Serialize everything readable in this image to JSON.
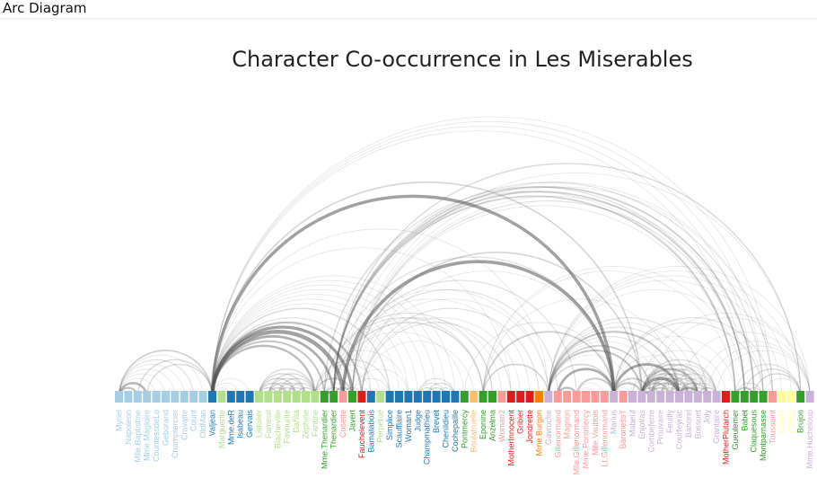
{
  "app": {
    "title": "Arc Diagram"
  },
  "chart_data": {
    "type": "arc",
    "title": "Character Co-occurrence in Les Miserables",
    "group_colors": {
      "1": "#a6cee3",
      "2": "#1f78b4",
      "3": "#b2df8a",
      "4": "#33a02c",
      "5": "#fb9a99",
      "6": "#e31a1c",
      "7": "#fdbf6f",
      "8": "#ff7f00",
      "9": "#cab2d6",
      "10": "#6a3d9a",
      "11": "#ffff99"
    },
    "nodes": [
      {
        "name": "Myriel",
        "group": 1
      },
      {
        "name": "Napoleon",
        "group": 1
      },
      {
        "name": "Mlle.Baptistine",
        "group": 1
      },
      {
        "name": "Mme.Magloire",
        "group": 1
      },
      {
        "name": "CountessdeLo",
        "group": 1
      },
      {
        "name": "Geborand",
        "group": 1
      },
      {
        "name": "Champtercier",
        "group": 1
      },
      {
        "name": "Cravatte",
        "group": 1
      },
      {
        "name": "Count",
        "group": 1
      },
      {
        "name": "OldMan",
        "group": 1
      },
      {
        "name": "Valjean",
        "group": 2
      },
      {
        "name": "Marguerite",
        "group": 3
      },
      {
        "name": "Mme.deR",
        "group": 2
      },
      {
        "name": "Isabeau",
        "group": 2
      },
      {
        "name": "Gervais",
        "group": 2
      },
      {
        "name": "Listolier",
        "group": 3
      },
      {
        "name": "Fameuil",
        "group": 3
      },
      {
        "name": "Blacheville",
        "group": 3
      },
      {
        "name": "Favourite",
        "group": 3
      },
      {
        "name": "Dahlia",
        "group": 3
      },
      {
        "name": "Zephine",
        "group": 3
      },
      {
        "name": "Fantine",
        "group": 3
      },
      {
        "name": "Mme.Thenardier",
        "group": 4
      },
      {
        "name": "Thenardier",
        "group": 4
      },
      {
        "name": "Cosette",
        "group": 5
      },
      {
        "name": "Javert",
        "group": 4
      },
      {
        "name": "Fauchelevent",
        "group": 6
      },
      {
        "name": "Bamatabois",
        "group": 2
      },
      {
        "name": "Perpetue",
        "group": 3
      },
      {
        "name": "Simplice",
        "group": 2
      },
      {
        "name": "Scaufflaire",
        "group": 2
      },
      {
        "name": "Woman1",
        "group": 2
      },
      {
        "name": "Judge",
        "group": 2
      },
      {
        "name": "Champmathieu",
        "group": 2
      },
      {
        "name": "Brevet",
        "group": 2
      },
      {
        "name": "Chenildieu",
        "group": 2
      },
      {
        "name": "Cochepaille",
        "group": 2
      },
      {
        "name": "Pontmercy",
        "group": 4
      },
      {
        "name": "Boulatruelle",
        "group": 7
      },
      {
        "name": "Eponine",
        "group": 4
      },
      {
        "name": "Anzelma",
        "group": 4
      },
      {
        "name": "Woman2",
        "group": 5
      },
      {
        "name": "MotherInnocent",
        "group": 6
      },
      {
        "name": "Gribier",
        "group": 6
      },
      {
        "name": "Jondrette",
        "group": 6
      },
      {
        "name": "Mme.Burgon",
        "group": 8
      },
      {
        "name": "Gavroche",
        "group": 9
      },
      {
        "name": "Gillenormand",
        "group": 5
      },
      {
        "name": "Magnon",
        "group": 5
      },
      {
        "name": "Mlle.Gillenormand",
        "group": 5
      },
      {
        "name": "Mme.Pontmercy",
        "group": 5
      },
      {
        "name": "Mlle.Vaubois",
        "group": 5
      },
      {
        "name": "Lt.Gillenormand",
        "group": 5
      },
      {
        "name": "Marius",
        "group": 9
      },
      {
        "name": "BaronessT",
        "group": 5
      },
      {
        "name": "Mabeuf",
        "group": 9
      },
      {
        "name": "Enjolras",
        "group": 9
      },
      {
        "name": "Combeferre",
        "group": 9
      },
      {
        "name": "Prouvaire",
        "group": 9
      },
      {
        "name": "Feuilly",
        "group": 9
      },
      {
        "name": "Courfeyrac",
        "group": 9
      },
      {
        "name": "Bahorel",
        "group": 9
      },
      {
        "name": "Bossuet",
        "group": 9
      },
      {
        "name": "Joly",
        "group": 9
      },
      {
        "name": "Grantaire",
        "group": 9
      },
      {
        "name": "MotherPlutarch",
        "group": 6
      },
      {
        "name": "Gueulemer",
        "group": 4
      },
      {
        "name": "Babet",
        "group": 4
      },
      {
        "name": "Claquesous",
        "group": 4
      },
      {
        "name": "Montparnasse",
        "group": 4
      },
      {
        "name": "Toussaint",
        "group": 5
      },
      {
        "name": "Child1",
        "group": 11
      },
      {
        "name": "Child2",
        "group": 11
      },
      {
        "name": "Brujon",
        "group": 4
      },
      {
        "name": "Mme.Hucheloup",
        "group": 9
      }
    ],
    "links": [
      [
        1,
        0,
        1
      ],
      [
        2,
        0,
        8
      ],
      [
        3,
        0,
        10
      ],
      [
        3,
        2,
        6
      ],
      [
        4,
        0,
        1
      ],
      [
        5,
        0,
        1
      ],
      [
        6,
        0,
        1
      ],
      [
        7,
        0,
        1
      ],
      [
        8,
        0,
        2
      ],
      [
        9,
        0,
        1
      ],
      [
        11,
        10,
        1
      ],
      [
        12,
        10,
        1
      ],
      [
        13,
        10,
        1
      ],
      [
        14,
        10,
        1
      ],
      [
        10,
        0,
        5
      ],
      [
        10,
        2,
        3
      ],
      [
        10,
        3,
        3
      ],
      [
        16,
        15,
        4
      ],
      [
        17,
        15,
        4
      ],
      [
        17,
        16,
        4
      ],
      [
        18,
        15,
        4
      ],
      [
        18,
        16,
        4
      ],
      [
        18,
        17,
        4
      ],
      [
        19,
        15,
        4
      ],
      [
        19,
        16,
        4
      ],
      [
        19,
        17,
        4
      ],
      [
        19,
        18,
        4
      ],
      [
        20,
        15,
        3
      ],
      [
        20,
        16,
        3
      ],
      [
        20,
        17,
        3
      ],
      [
        20,
        18,
        3
      ],
      [
        20,
        19,
        4
      ],
      [
        21,
        15,
        3
      ],
      [
        21,
        16,
        3
      ],
      [
        21,
        17,
        3
      ],
      [
        21,
        18,
        3
      ],
      [
        21,
        19,
        4
      ],
      [
        21,
        20,
        4
      ],
      [
        21,
        10,
        9
      ],
      [
        22,
        21,
        2
      ],
      [
        22,
        10,
        7
      ],
      [
        23,
        22,
        13
      ],
      [
        23,
        21,
        1
      ],
      [
        23,
        10,
        12
      ],
      [
        24,
        22,
        4
      ],
      [
        24,
        10,
        31
      ],
      [
        24,
        23,
        1
      ],
      [
        25,
        10,
        17
      ],
      [
        25,
        21,
        5
      ],
      [
        25,
        22,
        1
      ],
      [
        25,
        23,
        6
      ],
      [
        25,
        24,
        1
      ],
      [
        26,
        10,
        8
      ],
      [
        26,
        24,
        2
      ],
      [
        27,
        10,
        2
      ],
      [
        27,
        25,
        1
      ],
      [
        27,
        21,
        1
      ],
      [
        28,
        21,
        1
      ],
      [
        29,
        10,
        3
      ],
      [
        29,
        21,
        2
      ],
      [
        29,
        25,
        1
      ],
      [
        29,
        28,
        2
      ],
      [
        30,
        10,
        1
      ],
      [
        31,
        21,
        1
      ],
      [
        31,
        10,
        1
      ],
      [
        31,
        25,
        1
      ],
      [
        32,
        10,
        1
      ],
      [
        33,
        10,
        1
      ],
      [
        33,
        32,
        2
      ],
      [
        34,
        10,
        1
      ],
      [
        34,
        32,
        2
      ],
      [
        34,
        33,
        3
      ],
      [
        35,
        10,
        1
      ],
      [
        35,
        32,
        2
      ],
      [
        35,
        33,
        3
      ],
      [
        35,
        34,
        2
      ],
      [
        36,
        10,
        1
      ],
      [
        36,
        32,
        2
      ],
      [
        36,
        33,
        3
      ],
      [
        36,
        34,
        2
      ],
      [
        36,
        35,
        2
      ],
      [
        37,
        23,
        1
      ],
      [
        38,
        26,
        1
      ],
      [
        39,
        22,
        2
      ],
      [
        39,
        23,
        3
      ],
      [
        40,
        22,
        2
      ],
      [
        40,
        23,
        1
      ],
      [
        40,
        39,
        1
      ],
      [
        41,
        24,
        1
      ],
      [
        42,
        10,
        1
      ],
      [
        42,
        26,
        2
      ],
      [
        43,
        26,
        1
      ],
      [
        44,
        23,
        1
      ],
      [
        45,
        26,
        2
      ],
      [
        46,
        23,
        1
      ],
      [
        46,
        39,
        4
      ],
      [
        46,
        25,
        1
      ],
      [
        46,
        10,
        1
      ],
      [
        47,
        24,
        2
      ],
      [
        48,
        47,
        1
      ],
      [
        49,
        47,
        9
      ],
      [
        49,
        24,
        2
      ],
      [
        50,
        49,
        1
      ],
      [
        51,
        49,
        1
      ],
      [
        52,
        49,
        1
      ],
      [
        53,
        10,
        19
      ],
      [
        53,
        24,
        21
      ],
      [
        53,
        23,
        2
      ],
      [
        53,
        47,
        12
      ],
      [
        53,
        49,
        6
      ],
      [
        53,
        46,
        4
      ],
      [
        53,
        39,
        5
      ],
      [
        53,
        26,
        1
      ],
      [
        53,
        37,
        1
      ],
      [
        54,
        53,
        1
      ],
      [
        55,
        46,
        1
      ],
      [
        55,
        53,
        1
      ],
      [
        56,
        46,
        7
      ],
      [
        56,
        53,
        7
      ],
      [
        56,
        25,
        4
      ],
      [
        56,
        10,
        4
      ],
      [
        57,
        56,
        15
      ],
      [
        57,
        46,
        5
      ],
      [
        57,
        53,
        5
      ],
      [
        58,
        56,
        4
      ],
      [
        58,
        57,
        2
      ],
      [
        58,
        46,
        1
      ],
      [
        59,
        46,
        2
      ],
      [
        59,
        56,
        6
      ],
      [
        59,
        57,
        5
      ],
      [
        59,
        58,
        1
      ],
      [
        60,
        56,
        17
      ],
      [
        60,
        46,
        7
      ],
      [
        60,
        53,
        13
      ],
      [
        60,
        57,
        6
      ],
      [
        60,
        58,
        2
      ],
      [
        60,
        59,
        6
      ],
      [
        60,
        55,
        1
      ],
      [
        60,
        39,
        1
      ],
      [
        61,
        46,
        2
      ],
      [
        61,
        56,
        4
      ],
      [
        61,
        57,
        4
      ],
      [
        61,
        58,
        3
      ],
      [
        61,
        59,
        3
      ],
      [
        61,
        60,
        7
      ],
      [
        62,
        46,
        1
      ],
      [
        62,
        56,
        9
      ],
      [
        62,
        60,
        12
      ],
      [
        62,
        57,
        4
      ],
      [
        62,
        58,
        3
      ],
      [
        62,
        59,
        3
      ],
      [
        62,
        61,
        5
      ],
      [
        62,
        55,
        1
      ],
      [
        62,
        53,
        1
      ],
      [
        63,
        46,
        2
      ],
      [
        63,
        56,
        5
      ],
      [
        63,
        60,
        5
      ],
      [
        63,
        57,
        2
      ],
      [
        63,
        58,
        1
      ],
      [
        63,
        59,
        2
      ],
      [
        63,
        61,
        3
      ],
      [
        63,
        62,
        7
      ],
      [
        64,
        56,
        3
      ],
      [
        64,
        60,
        1
      ],
      [
        64,
        62,
        4
      ],
      [
        64,
        63,
        1
      ],
      [
        64,
        57,
        2
      ],
      [
        64,
        58,
        1
      ],
      [
        64,
        59,
        2
      ],
      [
        64,
        61,
        2
      ],
      [
        65,
        55,
        1
      ],
      [
        66,
        23,
        5
      ],
      [
        66,
        25,
        1
      ],
      [
        66,
        22,
        1
      ],
      [
        66,
        39,
        1
      ],
      [
        66,
        53,
        1
      ],
      [
        67,
        66,
        5
      ],
      [
        67,
        23,
        5
      ],
      [
        67,
        39,
        1
      ],
      [
        67,
        10,
        1
      ],
      [
        67,
        22,
        2
      ],
      [
        67,
        25,
        2
      ],
      [
        68,
        66,
        6
      ],
      [
        68,
        67,
        4
      ],
      [
        68,
        23,
        5
      ],
      [
        68,
        25,
        1
      ],
      [
        68,
        10,
        1
      ],
      [
        69,
        67,
        2
      ],
      [
        69,
        23,
        2
      ],
      [
        69,
        66,
        2
      ],
      [
        69,
        68,
        4
      ],
      [
        69,
        10,
        1
      ],
      [
        69,
        46,
        1
      ],
      [
        69,
        53,
        2
      ],
      [
        70,
        10,
        1
      ],
      [
        70,
        24,
        1
      ],
      [
        70,
        25,
        1
      ],
      [
        70,
        53,
        2
      ],
      [
        71,
        46,
        1
      ],
      [
        72,
        46,
        1
      ],
      [
        72,
        71,
        2
      ],
      [
        73,
        66,
        2
      ],
      [
        73,
        67,
        3
      ],
      [
        73,
        68,
        3
      ],
      [
        73,
        69,
        1
      ],
      [
        73,
        23,
        3
      ],
      [
        73,
        46,
        1
      ],
      [
        73,
        25,
        1
      ],
      [
        74,
        46,
        1
      ],
      [
        74,
        56,
        1
      ],
      [
        74,
        60,
        1
      ],
      [
        74,
        62,
        1
      ],
      [
        74,
        63,
        1
      ],
      [
        74,
        64,
        1
      ],
      [
        74,
        57,
        1
      ]
    ]
  }
}
